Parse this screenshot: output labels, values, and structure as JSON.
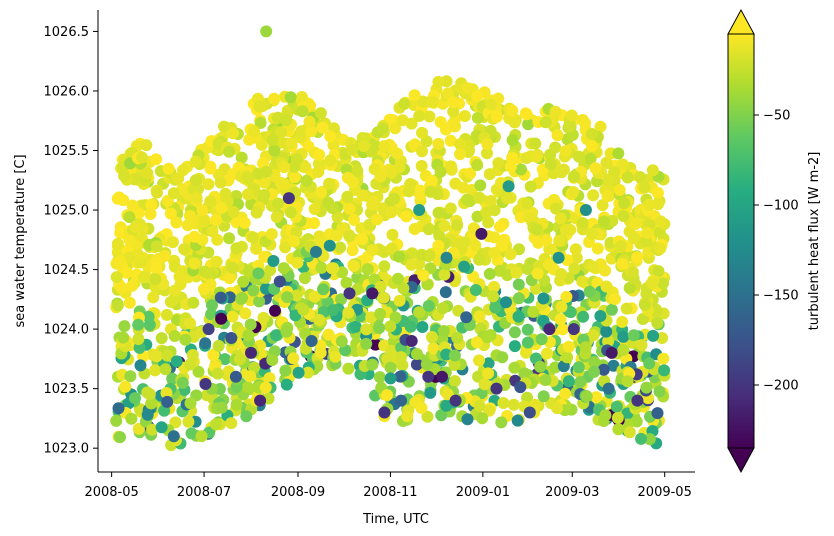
{
  "chart_data": {
    "type": "scatter",
    "title": "",
    "xlabel": "Time, UTC",
    "ylabel": "sea water temperature [C]",
    "x_ticks": [
      "2008-05",
      "2008-07",
      "2008-09",
      "2008-11",
      "2009-01",
      "2009-03",
      "2009-05"
    ],
    "xlim": [
      "2008-04-22",
      "2009-05-21"
    ],
    "y_ticks": [
      1023.0,
      1023.5,
      1024.0,
      1024.5,
      1025.0,
      1025.5,
      1026.0,
      1026.5
    ],
    "ylim": [
      1022.8,
      1026.68
    ],
    "colorbar": {
      "label": "turbulent heat flux [W m-2]",
      "colormap": "viridis",
      "range": [
        -235,
        -5
      ],
      "ticks": [
        -50,
        -100,
        -150,
        -200
      ],
      "extend": "both"
    },
    "grid": false,
    "points": [
      {
        "x": "2008-08-11",
        "y": 1026.5,
        "c": -40
      },
      {
        "x": "2008-08-26",
        "y": 1025.1,
        "c": -200
      },
      {
        "x": "2008-08-01",
        "y": 1023.8,
        "c": -210
      },
      {
        "x": "2008-07-04",
        "y": 1024.0,
        "c": -190
      },
      {
        "x": "2008-06-11",
        "y": 1023.1,
        "c": -150
      },
      {
        "x": "2008-08-07",
        "y": 1023.4,
        "c": -210
      },
      {
        "x": "2008-10-05",
        "y": 1024.3,
        "c": -200
      },
      {
        "x": "2008-10-20",
        "y": 1024.3,
        "c": -220
      },
      {
        "x": "2008-11-15",
        "y": 1023.9,
        "c": -210
      },
      {
        "x": "2008-11-26",
        "y": 1023.6,
        "c": -200
      },
      {
        "x": "2008-12-05",
        "y": 1023.6,
        "c": -220
      },
      {
        "x": "2008-12-14",
        "y": 1023.4,
        "c": -200
      },
      {
        "x": "2008-12-31",
        "y": 1024.8,
        "c": -220
      },
      {
        "x": "2009-01-10",
        "y": 1023.5,
        "c": -200
      },
      {
        "x": "2009-02-14",
        "y": 1024.0,
        "c": -210
      },
      {
        "x": "2009-03-02",
        "y": 1024.0,
        "c": -200
      },
      {
        "x": "2009-03-27",
        "y": 1023.8,
        "c": -220
      },
      {
        "x": "2009-03-25",
        "y": 1023.5,
        "c": -150
      },
      {
        "x": "2009-04-13",
        "y": 1023.4,
        "c": -200
      },
      {
        "x": "2008-12-21",
        "y": 1024.1,
        "c": -160
      },
      {
        "x": "2009-02-01",
        "y": 1023.3,
        "c": -180
      },
      {
        "x": "2008-11-08",
        "y": 1023.4,
        "c": -160
      },
      {
        "x": "2008-09-10",
        "y": 1023.9,
        "c": -160
      },
      {
        "x": "2008-08-20",
        "y": 1024.4,
        "c": -180
      },
      {
        "x": "2008-07-22",
        "y": 1023.6,
        "c": -170
      },
      {
        "x": "2008-10-28",
        "y": 1023.3,
        "c": -200
      },
      {
        "x": "2008-12-08",
        "y": 1024.6,
        "c": -130
      },
      {
        "x": "2009-02-20",
        "y": 1024.6,
        "c": -120
      },
      {
        "x": "2008-09-22",
        "y": 1024.7,
        "c": -120
      },
      {
        "x": "2008-11-20",
        "y": 1025.0,
        "c": -110
      },
      {
        "x": "2009-01-18",
        "y": 1025.2,
        "c": -110
      },
      {
        "x": "2009-03-10",
        "y": 1025.0,
        "c": -120
      }
    ]
  }
}
